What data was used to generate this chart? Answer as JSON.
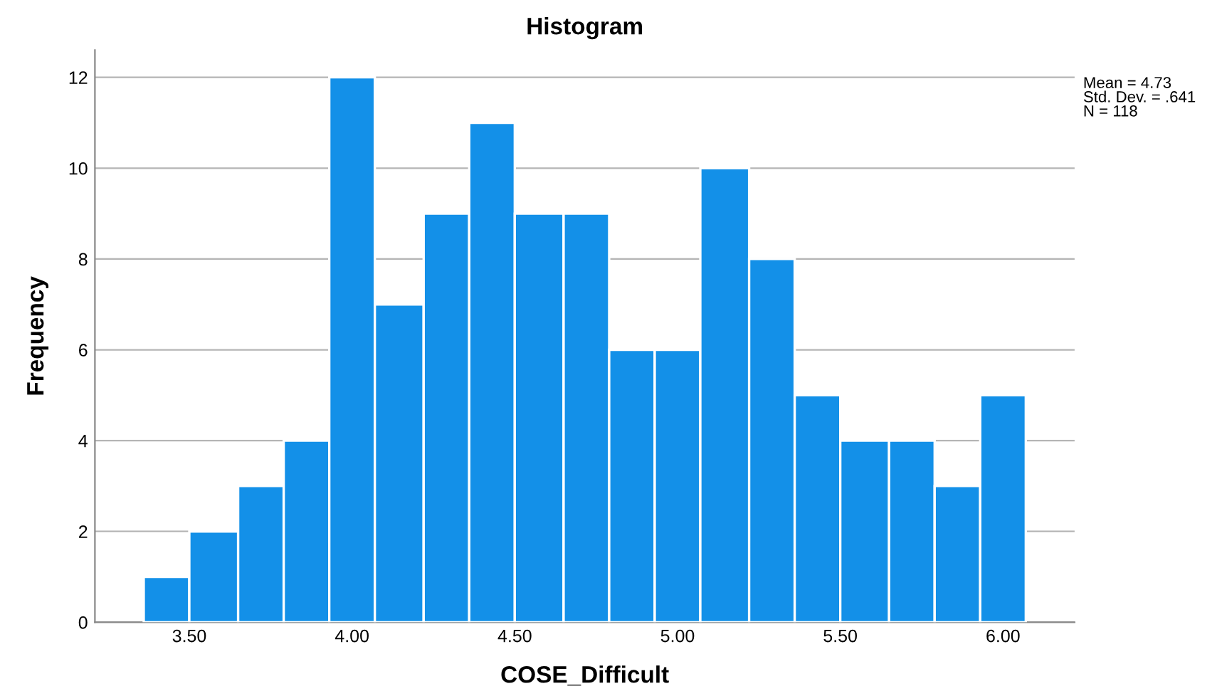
{
  "chart_data": {
    "type": "histogram",
    "title": "Histogram",
    "xlabel": "COSE_Difficult",
    "ylabel": "Frequency",
    "bins": [
      3.36,
      3.5,
      3.65,
      3.79,
      3.93,
      4.07,
      4.22,
      4.36,
      4.5,
      4.65,
      4.79,
      4.93,
      5.07,
      5.22,
      5.36,
      5.5,
      5.65,
      5.79,
      5.93,
      6.07
    ],
    "values": [
      1,
      2,
      3,
      4,
      12,
      7,
      9,
      11,
      9,
      9,
      6,
      6,
      10,
      8,
      5,
      4,
      4,
      3,
      5
    ],
    "color": "#1390e8",
    "xlim": [
      3.21,
      6.22
    ],
    "xticks": [
      {
        "value": 3.5,
        "label": "3.50"
      },
      {
        "value": 4.0,
        "label": "4.00"
      },
      {
        "value": 4.5,
        "label": "4.50"
      },
      {
        "value": 5.0,
        "label": "5.00"
      },
      {
        "value": 5.5,
        "label": "5.50"
      },
      {
        "value": 6.0,
        "label": "6.00"
      }
    ],
    "ylim": [
      0,
      12.6
    ],
    "yticks": [
      0,
      2,
      4,
      6,
      8,
      10,
      12
    ],
    "grid": "y",
    "annotations": [
      "Mean = 4.73\nStd. Dev. = .641\nN = 118"
    ]
  }
}
